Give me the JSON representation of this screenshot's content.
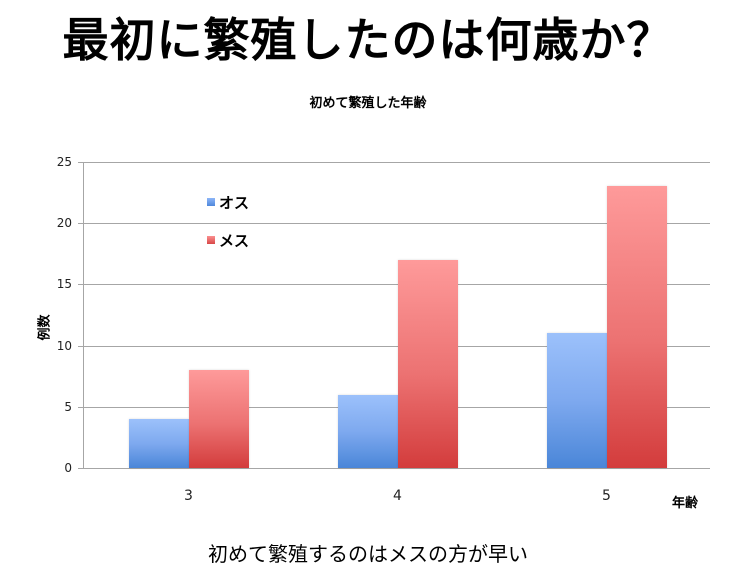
{
  "slide": {
    "title": "最初に繁殖したのは何歳か？",
    "conclusion": "初めて繁殖するのはメスの方が早い"
  },
  "colors": {
    "male": "#6f9ee8",
    "female": "#e86464",
    "grid": "#a6a6a6"
  },
  "chart_data": {
    "type": "bar",
    "title": "初めて繁殖した年齢",
    "xlabel": "年齢",
    "ylabel": "例数",
    "categories": [
      "3",
      "4",
      "5"
    ],
    "series": [
      {
        "name": "オス",
        "values": [
          4,
          6,
          11
        ]
      },
      {
        "name": "メス",
        "values": [
          8,
          17,
          23
        ]
      }
    ],
    "ylim": [
      0,
      25
    ],
    "yticks": [
      "0",
      "5",
      "10",
      "15",
      "20",
      "25"
    ],
    "grid": true,
    "legend_position": "upper-left inside plot"
  }
}
